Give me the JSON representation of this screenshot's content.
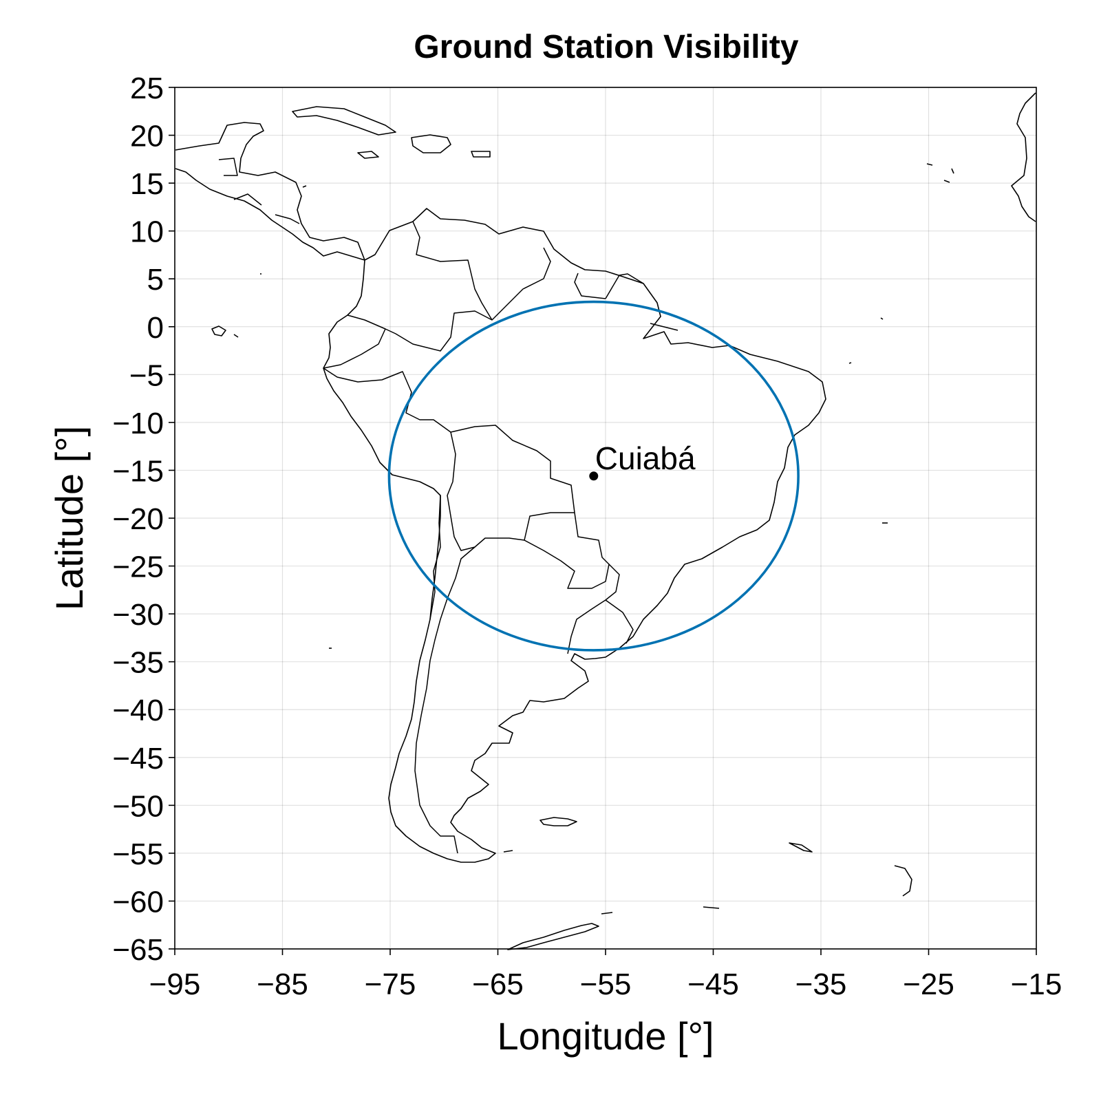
{
  "chart_data": {
    "type": "map",
    "title": "Ground Station Visibility",
    "xlabel": "Longitude [°]",
    "ylabel": "Latitude [°]",
    "xlim": [
      -95,
      -15
    ],
    "ylim": [
      -65,
      25
    ],
    "x_ticks": [
      -95,
      -85,
      -75,
      -65,
      -55,
      -45,
      -35,
      -25,
      -15
    ],
    "y_ticks": [
      25,
      20,
      15,
      10,
      5,
      0,
      -5,
      -10,
      -15,
      -20,
      -25,
      -30,
      -35,
      -40,
      -45,
      -50,
      -55,
      -60,
      -65
    ],
    "x_tick_labels": [
      "−95",
      "−85",
      "−75",
      "−65",
      "−55",
      "−45",
      "−35",
      "−25",
      "−15"
    ],
    "y_tick_labels": [
      "25",
      "20",
      "15",
      "10",
      "5",
      "0",
      "−5",
      "−10",
      "−15",
      "−20",
      "−25",
      "−30",
      "−35",
      "−40",
      "−45",
      "−50",
      "−55",
      "−60",
      "−65"
    ],
    "grid": true,
    "station": {
      "name": "Cuiabá",
      "lon": -56.1,
      "lat": -15.6
    },
    "visibility_ellipse": {
      "center_lon": -56.1,
      "center_lat": -15.6,
      "half_width_lon": 19.0,
      "half_height_lat": 18.2
    },
    "colors": {
      "visibility": "#0072b2",
      "land_outline": "#000000",
      "grid": "#e5e5e5"
    }
  }
}
